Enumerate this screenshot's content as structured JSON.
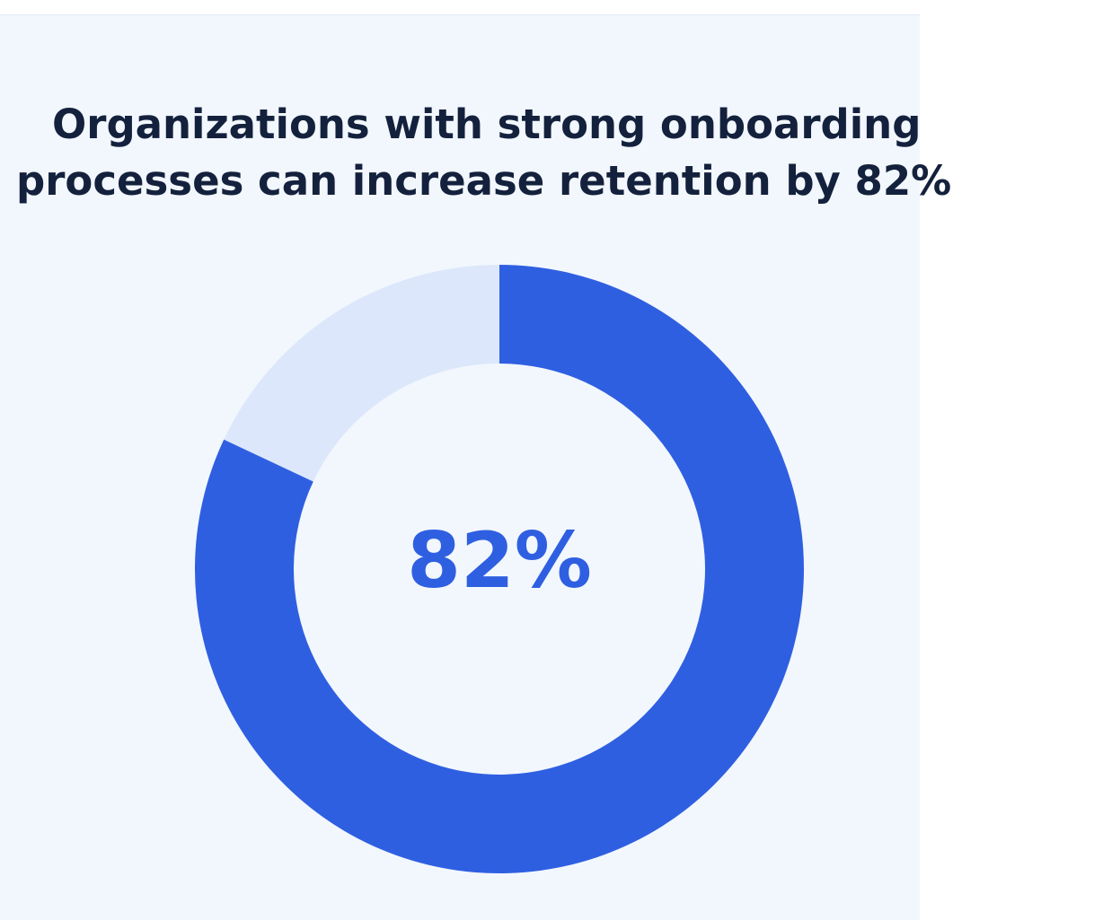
{
  "headline": {
    "line1": "Organizations with strong onboarding",
    "line2": "processes can increase retention by 82%"
  },
  "chart_data": {
    "type": "pie",
    "title": "Organizations with strong onboarding processes can increase retention by 82%",
    "center_label": "82%",
    "slices": [
      {
        "value": 82,
        "color": "#2f5fe1"
      },
      {
        "value": 18,
        "color": "#dce7fb"
      }
    ],
    "start": "top",
    "direction": "clockwise",
    "donut": true
  }
}
